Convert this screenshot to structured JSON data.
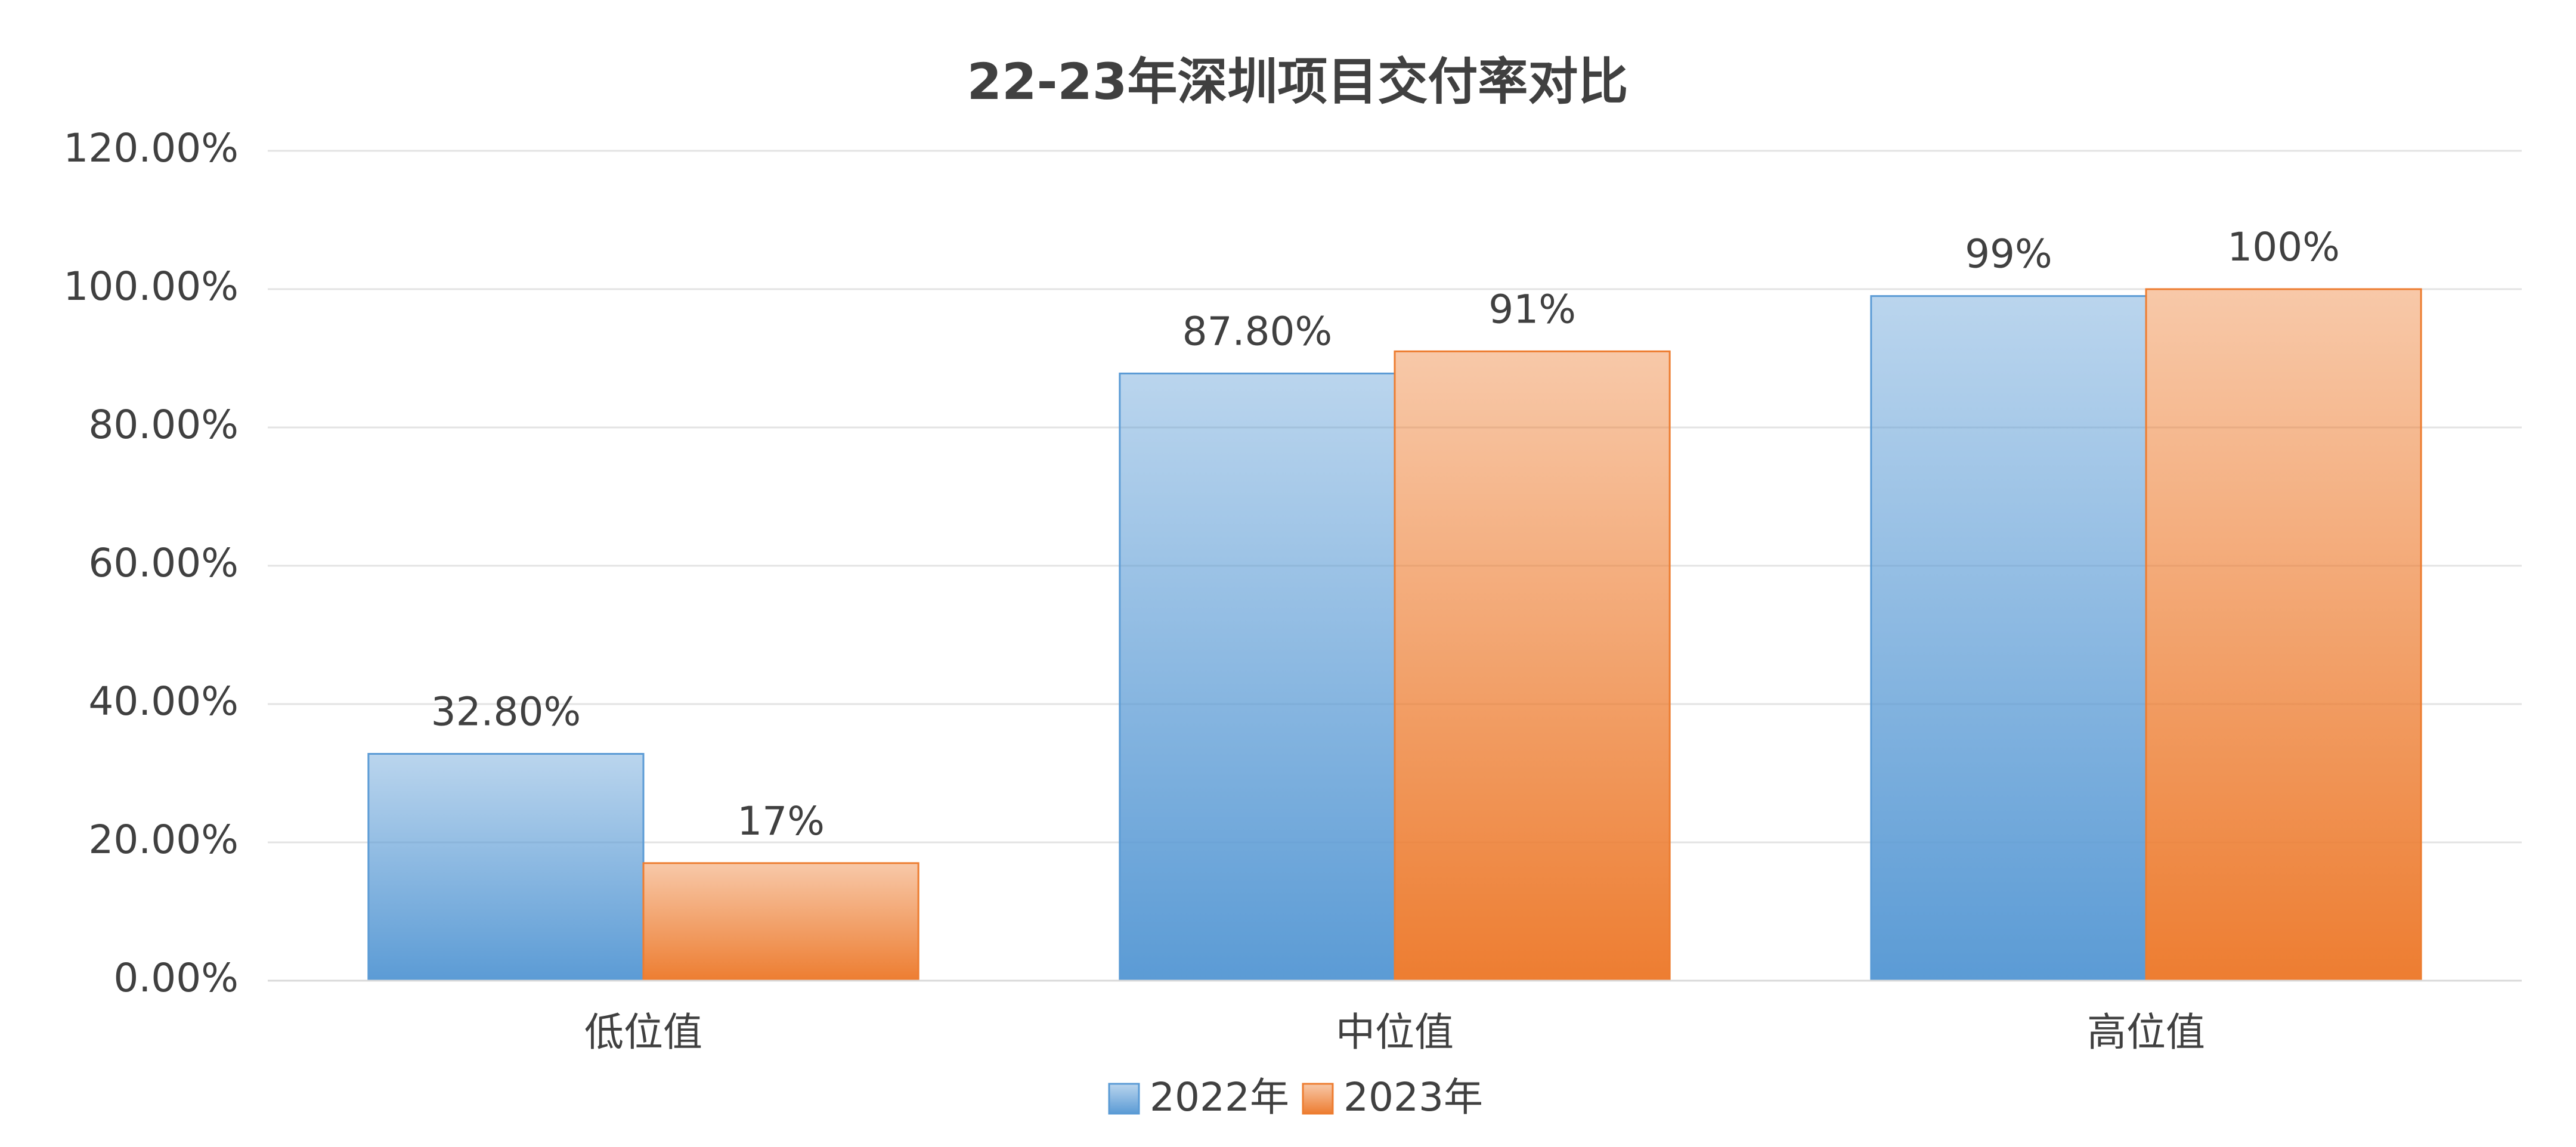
{
  "chart_data": {
    "type": "bar",
    "title": "22-23年深圳项目交付率对比",
    "categories": [
      "低位值",
      "中位值",
      "高位值"
    ],
    "series": [
      {
        "name": "2022年",
        "color": "#5b9bd5",
        "values": [
          32.8,
          87.8,
          99
        ],
        "value_labels": [
          "32.80%",
          "87.80%",
          "99%"
        ]
      },
      {
        "name": "2023年",
        "color": "#ed7d31",
        "values": [
          17,
          91,
          100
        ],
        "value_labels": [
          "17%",
          "91%",
          "100%"
        ]
      }
    ],
    "ylim": [
      0,
      120
    ],
    "yticks": [
      {
        "value": 0,
        "label": "0.00%"
      },
      {
        "value": 20,
        "label": "20.00%"
      },
      {
        "value": 40,
        "label": "40.00%"
      },
      {
        "value": 60,
        "label": "60.00%"
      },
      {
        "value": 80,
        "label": "80.00%"
      },
      {
        "value": 100,
        "label": "100.00%"
      },
      {
        "value": 120,
        "label": "120.00%"
      }
    ],
    "grid": true,
    "legend": "bottom"
  }
}
